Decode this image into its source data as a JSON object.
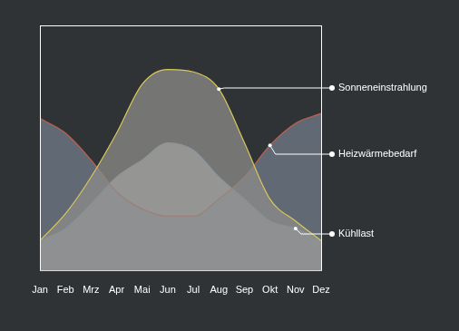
{
  "chart_data": {
    "type": "area",
    "categories": [
      "Jan",
      "Feb",
      "Mrz",
      "Apr",
      "Mai",
      "Jun",
      "Jul",
      "Aug",
      "Sep",
      "Okt",
      "Nov",
      "Dez"
    ],
    "series": [
      {
        "name": "Sonneneinstrahlung",
        "color": "#d9c75a",
        "values": [
          12,
          23,
          38,
          56,
          76,
          82,
          81,
          74,
          52,
          29,
          20,
          12
        ]
      },
      {
        "name": "Heizwärmebedarf",
        "color": "#c2604e",
        "values": [
          62,
          56,
          45,
          32,
          25,
          22,
          22,
          29,
          38,
          51,
          60,
          64
        ]
      },
      {
        "name": "Kühllast",
        "color": "#8fb2d0",
        "values": [
          12,
          17,
          27,
          38,
          45,
          52,
          49,
          38,
          29,
          20,
          17,
          12
        ]
      }
    ],
    "ylim": [
      0,
      100
    ],
    "grid": false,
    "legend": "right",
    "tick_labels": "x"
  }
}
